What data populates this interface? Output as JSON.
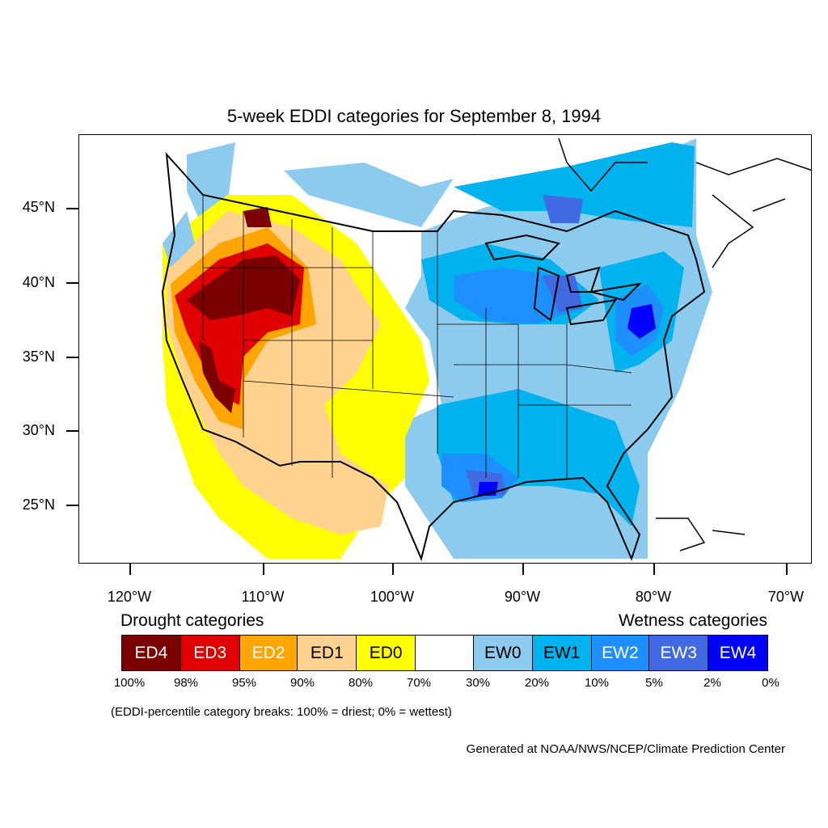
{
  "title": "5-week EDDI categories for September 8, 1994",
  "lat_labels": [
    "45°N",
    "40°N",
    "35°N",
    "30°N",
    "25°N"
  ],
  "lon_labels": [
    "120°W",
    "110°W",
    "100°W",
    "90°W",
    "80°W",
    "70°W"
  ],
  "drought_label": "Drought categories",
  "wetness_label": "Wetness categories",
  "legend": [
    {
      "label": "ED4",
      "color": "#7b0000",
      "text_color": "#ffffff"
    },
    {
      "label": "ED3",
      "color": "#e00000",
      "text_color": "#ffffff"
    },
    {
      "label": "ED2",
      "color": "#ffa500",
      "text_color": "#ffffff"
    },
    {
      "label": "ED1",
      "color": "#ffd38f",
      "text_color": "#000000"
    },
    {
      "label": "ED0",
      "color": "#ffff00",
      "text_color": "#000000"
    },
    {
      "label": "",
      "color": "#ffffff",
      "text_color": "#000000"
    },
    {
      "label": "EW0",
      "color": "#8ccbee",
      "text_color": "#000000"
    },
    {
      "label": "EW1",
      "color": "#00b2ee",
      "text_color": "#000000"
    },
    {
      "label": "EW2",
      "color": "#1e8fff",
      "text_color": "#ffffff"
    },
    {
      "label": "EW3",
      "color": "#4169e1",
      "text_color": "#ffffff"
    },
    {
      "label": "EW4",
      "color": "#0000ff",
      "text_color": "#ffffff"
    }
  ],
  "percent_breaks": [
    "100%",
    "98%",
    "95%",
    "90%",
    "80%",
    "70%",
    "30%",
    "20%",
    "10%",
    "5%",
    "2%",
    "0%"
  ],
  "note": "(EDDI-percentile category breaks: 100% = driest; 0% = wettest)",
  "credit": "Generated at NOAA/NWS/NCEP/Climate Prediction Center"
}
